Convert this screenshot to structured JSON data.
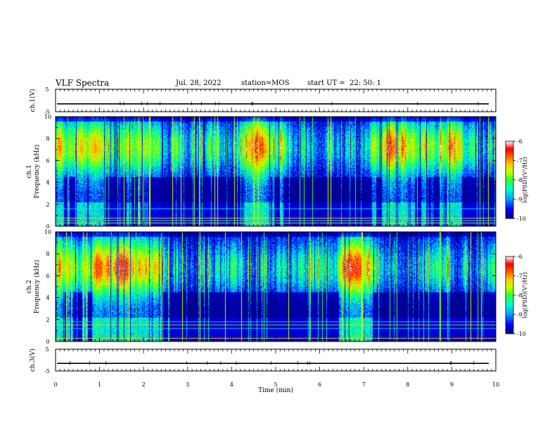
{
  "header": {
    "title": "VLF Spectra",
    "date": "Jul. 28, 2022",
    "station": "station=MOS",
    "start": "start UT =  22: 50: 1"
  },
  "chart_data": [
    {
      "type": "line",
      "panel": "ch1-voltage",
      "ylabel": "ch.1(V)",
      "ylim": [
        -5,
        5
      ],
      "y_ticks": [
        "5",
        "-5"
      ],
      "trace_level": -1.5,
      "trace_color": "#000000"
    },
    {
      "type": "heatmap",
      "panel": "ch1-spectrogram",
      "ylabel": "ch.1\nFrequency (kHz)",
      "ylabel_lines": [
        "ch.1",
        "Frequency (kHz)"
      ],
      "ylim": [
        0,
        10
      ],
      "y_ticks": [
        "0",
        "2",
        "4",
        "6",
        "8",
        "10"
      ],
      "colorbar": {
        "label": "log(PSD)(V²/Hz)",
        "range": [
          -10,
          -6
        ],
        "ticks": [
          "-6",
          "-7",
          "-8",
          "-9",
          "-10"
        ]
      },
      "peak_band_khz": [
        5.5,
        9.0
      ]
    },
    {
      "type": "heatmap",
      "panel": "ch2-spectrogram",
      "ylabel": "ch.2\nFrequency (kHz)",
      "ylabel_lines": [
        "ch.2",
        "Frequency (kHz)"
      ],
      "ylim": [
        0,
        10
      ],
      "y_ticks": [
        "0",
        "2",
        "4",
        "6",
        "8",
        "10"
      ],
      "colorbar": {
        "label": "log(PSD)(V²/Hz)",
        "range": [
          -10,
          -6
        ],
        "ticks": [
          "-6",
          "-7",
          "-8",
          "-9",
          "-10"
        ]
      },
      "peak_band_khz": [
        5.0,
        8.5
      ]
    },
    {
      "type": "line",
      "panel": "ch3-voltage",
      "ylabel": "ch.3(V)",
      "ylim": [
        -5,
        5
      ],
      "y_ticks": [
        "5",
        "-5"
      ],
      "trace_level": -1.5,
      "trace_color": "#000000"
    }
  ],
  "x_axis": {
    "label": "Time (min)",
    "range": [
      0,
      10
    ],
    "ticks": [
      "0",
      "1",
      "2",
      "3",
      "4",
      "5",
      "6",
      "7",
      "8",
      "9",
      "10"
    ]
  },
  "colormap": [
    "#00007a",
    "#0000ff",
    "#00a0ff",
    "#00ffd0",
    "#30ff30",
    "#c8ff00",
    "#ffd000",
    "#ff6000",
    "#ff0000",
    "#ffffff"
  ]
}
